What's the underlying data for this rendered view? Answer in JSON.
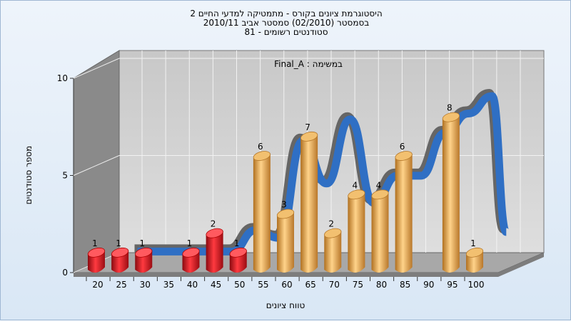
{
  "chart_data": {
    "type": "bar",
    "title_lines": [
      "היסטוגרמת ציונים בקורס - מתמטיקה למדעי החיים 2",
      "בסמסטר (02/2010) סמסטר אביב 2010/11",
      "סטודנטים רשומים - 81"
    ],
    "series_label": "במשימה : Final_A",
    "xlabel": "טווח ציונים",
    "ylabel": "מספר סטודנטים",
    "x_ticks": [
      "20",
      "25",
      "30",
      "35",
      "40",
      "45",
      "50",
      "55",
      "60",
      "65",
      "70",
      "75",
      "80",
      "85",
      "90",
      "95",
      "100"
    ],
    "y_ticks": [
      "0",
      "5",
      "10"
    ],
    "ylim": [
      0,
      10
    ],
    "bars": [
      {
        "x": 20,
        "value": 1,
        "label": "1",
        "group": "fail"
      },
      {
        "x": 25,
        "value": 1,
        "label": "1",
        "group": "fail"
      },
      {
        "x": 30,
        "value": 1,
        "label": "1",
        "group": "fail"
      },
      {
        "x": 40,
        "value": 1,
        "label": "1",
        "group": "fail"
      },
      {
        "x": 45,
        "value": 2,
        "label": "2",
        "group": "fail"
      },
      {
        "x": 50,
        "value": 1,
        "label": "1",
        "group": "fail"
      },
      {
        "x": 55,
        "value": 6,
        "label": "6",
        "group": "pass"
      },
      {
        "x": 60,
        "value": 3,
        "label": "3",
        "group": "pass"
      },
      {
        "x": 65,
        "value": 7,
        "label": "7",
        "group": "pass"
      },
      {
        "x": 70,
        "value": 2,
        "label": "2",
        "group": "pass"
      },
      {
        "x": 75,
        "value": 4,
        "label": "4",
        "group": "pass"
      },
      {
        "x": 80,
        "value": 4,
        "label": "4",
        "group": "pass"
      },
      {
        "x": 85,
        "value": 6,
        "label": "6",
        "group": "pass"
      },
      {
        "x": 95,
        "value": 8,
        "label": "8",
        "group": "pass"
      },
      {
        "x": 100,
        "value": 1,
        "label": "1",
        "group": "pass"
      }
    ],
    "curve_points": [
      {
        "x": 25,
        "value": 0.5
      },
      {
        "x": 30,
        "value": 0.5
      },
      {
        "x": 35,
        "value": 0.5
      },
      {
        "x": 40,
        "value": 0.5
      },
      {
        "x": 45,
        "value": 0.5
      },
      {
        "x": 50,
        "value": 1.6
      },
      {
        "x": 55,
        "value": 1.2
      },
      {
        "x": 60,
        "value": 6.2
      },
      {
        "x": 65,
        "value": 4.0
      },
      {
        "x": 70,
        "value": 7.3
      },
      {
        "x": 75,
        "value": 3.0
      },
      {
        "x": 80,
        "value": 4.4
      },
      {
        "x": 85,
        "value": 4.4
      },
      {
        "x": 90,
        "value": 6.6
      },
      {
        "x": 95,
        "value": 7.6
      },
      {
        "x": 100,
        "value": 8.5
      },
      {
        "x": 103,
        "value": 1.5
      }
    ],
    "colors": {
      "fail": "#d9121e",
      "pass": "#e0a340",
      "curve": "#2f6fc4",
      "curve_shadow": "#666666",
      "wall": "#8a8a8a",
      "back": "#d2d2d2"
    },
    "grid": true
  }
}
